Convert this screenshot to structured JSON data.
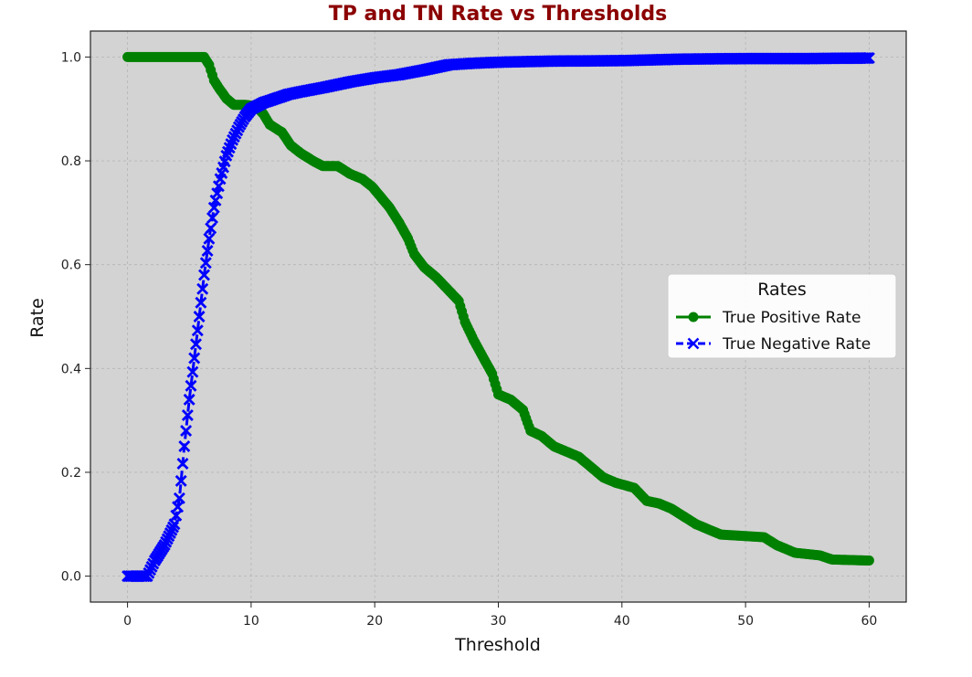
{
  "chart_data": {
    "type": "line",
    "title": "TP and TN Rate vs Thresholds",
    "xlabel": "Threshold",
    "ylabel": "Rate",
    "xlim": [
      -3,
      63
    ],
    "ylim": [
      -0.05,
      1.05
    ],
    "x_ticks": [
      0,
      10,
      20,
      30,
      40,
      50,
      60
    ],
    "y_ticks": [
      "0.0",
      "0.2",
      "0.4",
      "0.6",
      "0.8",
      "1.0"
    ],
    "grid": true,
    "legend": {
      "title": "Rates",
      "placement": "center-right"
    },
    "colors": {
      "title": "#8b0000",
      "plot_bg": "#d3d3d3",
      "tpr": "#008000",
      "tnr": "#0000ff"
    },
    "series": [
      {
        "name": "True Positive Rate",
        "marker": "circle",
        "points": [
          [
            0,
            1.0
          ],
          [
            6.2,
            1.0
          ],
          [
            6.6,
            0.985
          ],
          [
            7.0,
            0.955
          ],
          [
            7.4,
            0.94
          ],
          [
            8.0,
            0.92
          ],
          [
            8.6,
            0.908
          ],
          [
            9.5,
            0.908
          ],
          [
            10.4,
            0.905
          ],
          [
            11.0,
            0.89
          ],
          [
            11.5,
            0.87
          ],
          [
            12.5,
            0.855
          ],
          [
            13.2,
            0.83
          ],
          [
            14.0,
            0.815
          ],
          [
            15.0,
            0.8
          ],
          [
            15.8,
            0.79
          ],
          [
            17.0,
            0.79
          ],
          [
            18.0,
            0.775
          ],
          [
            19.0,
            0.765
          ],
          [
            19.8,
            0.75
          ],
          [
            20.5,
            0.73
          ],
          [
            21.2,
            0.71
          ],
          [
            22.0,
            0.68
          ],
          [
            22.7,
            0.65
          ],
          [
            23.2,
            0.62
          ],
          [
            24.0,
            0.595
          ],
          [
            25.0,
            0.575
          ],
          [
            26.0,
            0.55
          ],
          [
            26.8,
            0.53
          ],
          [
            27.3,
            0.49
          ],
          [
            28.0,
            0.455
          ],
          [
            28.8,
            0.42
          ],
          [
            29.5,
            0.39
          ],
          [
            30.0,
            0.35
          ],
          [
            31.0,
            0.34
          ],
          [
            32.0,
            0.32
          ],
          [
            32.6,
            0.28
          ],
          [
            33.5,
            0.27
          ],
          [
            34.5,
            0.25
          ],
          [
            35.5,
            0.24
          ],
          [
            36.5,
            0.23
          ],
          [
            37.5,
            0.21
          ],
          [
            38.5,
            0.19
          ],
          [
            39.5,
            0.18
          ],
          [
            41.0,
            0.17
          ],
          [
            42.0,
            0.145
          ],
          [
            43.0,
            0.14
          ],
          [
            44.0,
            0.13
          ],
          [
            45.0,
            0.115
          ],
          [
            46.0,
            0.1
          ],
          [
            47.0,
            0.09
          ],
          [
            48.0,
            0.08
          ],
          [
            51.5,
            0.075
          ],
          [
            52.5,
            0.06
          ],
          [
            54.0,
            0.045
          ],
          [
            56.0,
            0.04
          ],
          [
            57.0,
            0.032
          ],
          [
            60.0,
            0.03
          ]
        ]
      },
      {
        "name": "True Negative Rate",
        "marker": "x",
        "points": [
          [
            0,
            0.0
          ],
          [
            1.6,
            0.0
          ],
          [
            2.2,
            0.03
          ],
          [
            3.0,
            0.06
          ],
          [
            3.8,
            0.1
          ],
          [
            4.2,
            0.15
          ],
          [
            4.6,
            0.25
          ],
          [
            5.0,
            0.34
          ],
          [
            5.4,
            0.42
          ],
          [
            5.8,
            0.5
          ],
          [
            6.2,
            0.58
          ],
          [
            6.6,
            0.65
          ],
          [
            7.0,
            0.71
          ],
          [
            7.5,
            0.765
          ],
          [
            8.0,
            0.81
          ],
          [
            8.5,
            0.84
          ],
          [
            9.0,
            0.865
          ],
          [
            9.5,
            0.885
          ],
          [
            10.0,
            0.9
          ],
          [
            11.0,
            0.912
          ],
          [
            12.0,
            0.92
          ],
          [
            13.0,
            0.928
          ],
          [
            14.0,
            0.933
          ],
          [
            16.0,
            0.942
          ],
          [
            18.0,
            0.952
          ],
          [
            20.0,
            0.96
          ],
          [
            22.0,
            0.966
          ],
          [
            24.0,
            0.975
          ],
          [
            26.0,
            0.985
          ],
          [
            28.0,
            0.988
          ],
          [
            30.0,
            0.99
          ],
          [
            34.0,
            0.992
          ],
          [
            40.0,
            0.993
          ],
          [
            45.0,
            0.996
          ],
          [
            50.0,
            0.997
          ],
          [
            55.0,
            0.997
          ],
          [
            60.0,
            0.998
          ]
        ]
      }
    ]
  }
}
